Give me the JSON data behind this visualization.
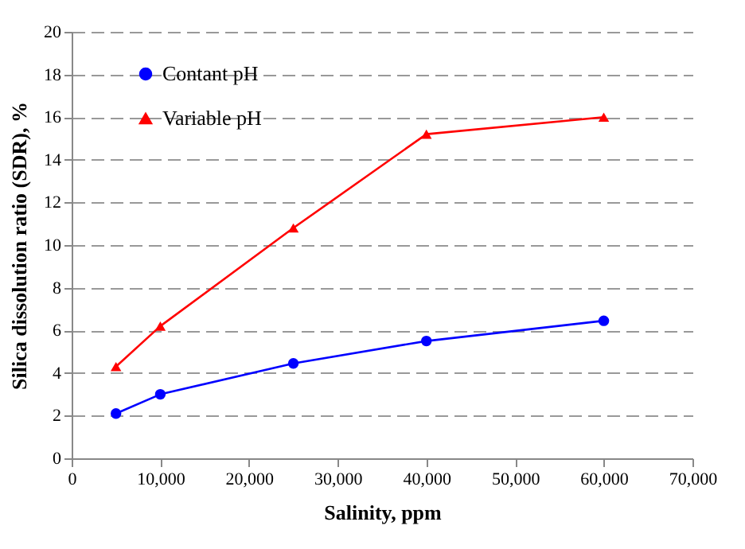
{
  "chart_data": {
    "type": "line",
    "xlabel": "Salinity, ppm",
    "ylabel": "Silica dissolution ratio (SDR), %",
    "x": [
      5000,
      10000,
      25000,
      40000,
      60000
    ],
    "series": [
      {
        "name": "Contant pH",
        "color": "#0000ff",
        "marker": "circle",
        "values": [
          2.1,
          3.0,
          4.45,
          5.5,
          6.45
        ]
      },
      {
        "name": "Variable pH",
        "color": "#ff0000",
        "marker": "triangle",
        "values": [
          4.3,
          6.2,
          10.8,
          15.2,
          16.0
        ]
      }
    ],
    "xlim": [
      0,
      70000
    ],
    "xticks": [
      {
        "value": 0,
        "label": "0"
      },
      {
        "value": 10000,
        "label": "10,000"
      },
      {
        "value": 20000,
        "label": "20,000"
      },
      {
        "value": 30000,
        "label": "30,000"
      },
      {
        "value": 40000,
        "label": "40,000"
      },
      {
        "value": 50000,
        "label": "50,000"
      },
      {
        "value": 60000,
        "label": "60,000"
      },
      {
        "value": 70000,
        "label": "70,000"
      }
    ],
    "ylim": [
      0,
      20
    ],
    "yticks": [
      0,
      2,
      4,
      6,
      8,
      10,
      12,
      14,
      16,
      18,
      20
    ],
    "grid": "y",
    "legend": "top left",
    "line_style": "solid"
  }
}
